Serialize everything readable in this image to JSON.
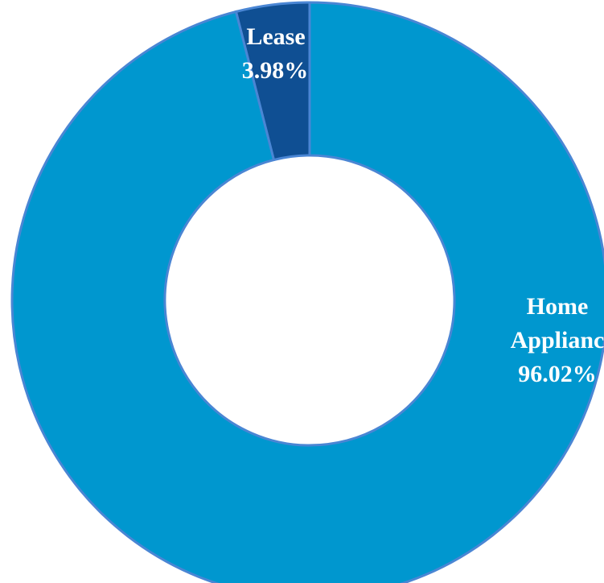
{
  "chart_data": {
    "type": "pie",
    "variant": "donut",
    "title": "",
    "legend": "none",
    "slices": [
      {
        "label": "Lease",
        "value": 3.98,
        "value_text": "3.98%",
        "color": "#0f4f93"
      },
      {
        "label_lines": [
          "Home",
          "Applianc"
        ],
        "value": 96.02,
        "value_text": "96.02%",
        "color": "#0097cf"
      }
    ]
  }
}
